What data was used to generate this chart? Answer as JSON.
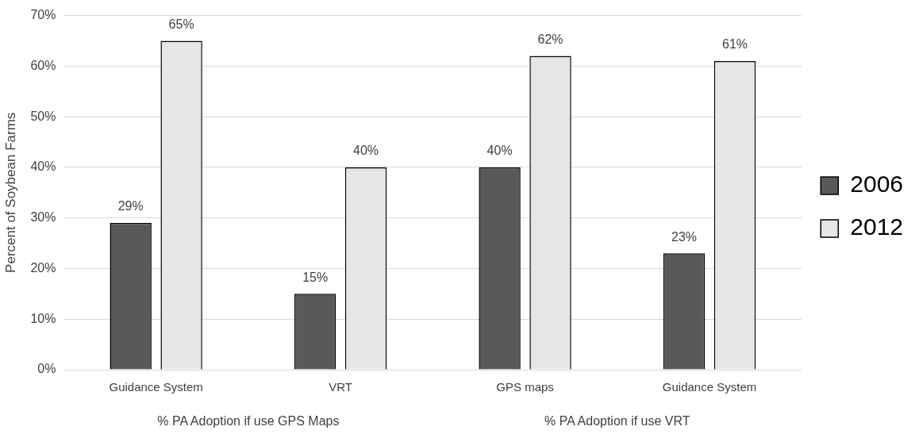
{
  "chart_data": {
    "type": "bar",
    "ylabel": "Percent of Soybean Farms",
    "categories": [
      "Guidance System",
      "VRT",
      "GPS maps",
      "Guidance System"
    ],
    "series": [
      {
        "name": "2006",
        "color": "#595959",
        "values": [
          29,
          15,
          40,
          23
        ],
        "value_labels": [
          "29%",
          "15%",
          "40%",
          "23%"
        ]
      },
      {
        "name": "2012",
        "color": "#e6e6e6",
        "values": [
          65,
          40,
          62,
          61
        ],
        "value_labels": [
          "65%",
          "40%",
          "62%",
          "61%"
        ]
      }
    ],
    "ylim": [
      0,
      70
    ],
    "yticks": [
      {
        "value": 0,
        "label": "0%"
      },
      {
        "value": 10,
        "label": "10%"
      },
      {
        "value": 20,
        "label": "20%"
      },
      {
        "value": 30,
        "label": "30%"
      },
      {
        "value": 40,
        "label": "40%"
      },
      {
        "value": 50,
        "label": "50%"
      },
      {
        "value": 60,
        "label": "60%"
      },
      {
        "value": 70,
        "label": "70%"
      }
    ],
    "grid": "y",
    "legend": "right",
    "annotations": [
      "% PA Adoption if use GPS Maps",
      "% PA Adoption if use VRT"
    ]
  }
}
